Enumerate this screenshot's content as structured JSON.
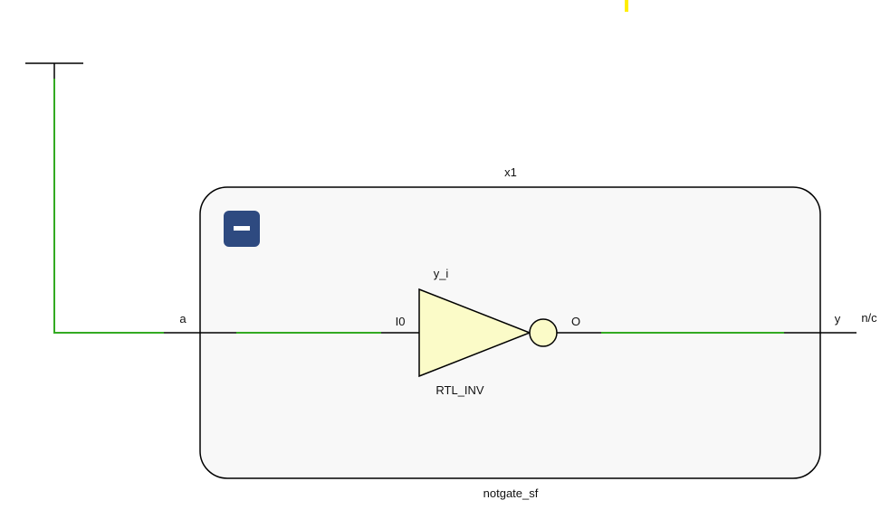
{
  "schematic": {
    "instance": {
      "name": "x1",
      "cell": "notgate_sf",
      "collapse_symbol": "−"
    },
    "ports": {
      "input": "a",
      "output": "y",
      "output_status": "n/c"
    },
    "gate": {
      "name": "y_i",
      "type": "RTL_INV",
      "input_pin": "I0",
      "output_pin": "O"
    },
    "colors": {
      "wire": "#000000",
      "highlighted_net": "#33aa22",
      "gate_fill": "#fbfbc8",
      "block_fill": "#f8f8f8",
      "collapse_button": "#2e4a80",
      "marker": "#ffee00"
    }
  }
}
